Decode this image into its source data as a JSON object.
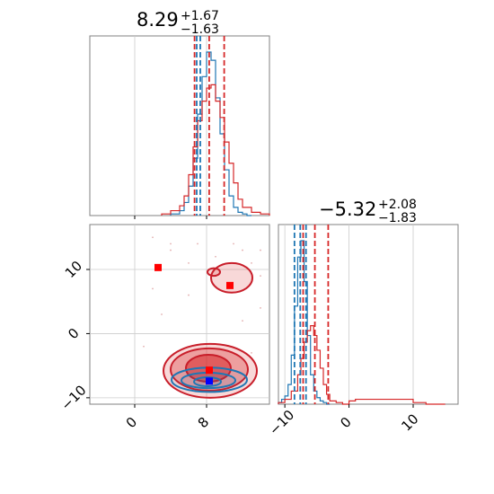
{
  "colors": {
    "blue": "#1f77b4",
    "red": "#d62728",
    "red_dark": "#c81e2a",
    "blue_marker": "#0000ff",
    "red_marker": "#ff0000",
    "grid": "#cccccc",
    "frame": "#808080"
  },
  "titles": {
    "p1": {
      "main": "8.29",
      "sup": "+1.67",
      "sub": "−1.63"
    },
    "p2": {
      "main": "−5.32",
      "sup": "+2.08",
      "sub": "−1.83"
    }
  },
  "chart_data": [
    {
      "type": "histogram",
      "panel": "marginal-param-1",
      "title": "8.29 +1.67 −1.63",
      "xlim": [
        -5,
        15
      ],
      "xticks": [
        0,
        8
      ],
      "series": [
        {
          "color": "blue",
          "bins": [
            4,
            5,
            5.5,
            6,
            6.5,
            7,
            7.5,
            8,
            8.5,
            9,
            9.5,
            10,
            10.5,
            11,
            11.5,
            12,
            12.5,
            13
          ],
          "counts": [
            0.01,
            0.03,
            0.08,
            0.18,
            0.35,
            0.62,
            0.85,
            1.0,
            0.95,
            0.72,
            0.5,
            0.28,
            0.12,
            0.05,
            0.02,
            0.01,
            0
          ]
        },
        {
          "color": "red",
          "bins": [
            3,
            4,
            5,
            5.5,
            6,
            6.5,
            7,
            7.5,
            8,
            8.5,
            9,
            9.5,
            10,
            10.5,
            11,
            11.5,
            12,
            13,
            14,
            15
          ],
          "counts": [
            0.01,
            0.03,
            0.06,
            0.12,
            0.25,
            0.42,
            0.58,
            0.7,
            0.78,
            0.8,
            0.7,
            0.6,
            0.45,
            0.32,
            0.2,
            0.1,
            0.05,
            0.02,
            0.01
          ]
        }
      ],
      "quantiles": [
        {
          "color": "red",
          "values": [
            6.66,
            8.29,
            9.96
          ]
        },
        {
          "color": "blue",
          "values": [
            6.9,
            7.3
          ]
        }
      ]
    },
    {
      "type": "histogram",
      "panel": "marginal-param-2",
      "title": "−5.32 +2.08 −1.83",
      "xlim": [
        -11,
        17
      ],
      "xticks": [
        -10,
        0,
        10
      ],
      "series": [
        {
          "color": "blue",
          "bins": [
            -11,
            -10.5,
            -10,
            -9.5,
            -9,
            -8.5,
            -8,
            -7.5,
            -7,
            -6.5,
            -6,
            -5.5,
            -5,
            -4.5,
            -4,
            -3.5,
            -3
          ],
          "counts": [
            0.01,
            0.03,
            0.05,
            0.12,
            0.3,
            0.6,
            0.9,
            1.0,
            0.75,
            0.42,
            0.18,
            0.08,
            0.04,
            0.02,
            0.01,
            0
          ]
        },
        {
          "color": "red",
          "bins": [
            -11,
            -10,
            -9,
            -8,
            -7.5,
            -7,
            -6.5,
            -6,
            -5.5,
            -5,
            -4.5,
            -4,
            -3.5,
            -3,
            -2,
            -1,
            0,
            1,
            5,
            10,
            12,
            15
          ],
          "counts": [
            0.01,
            0.03,
            0.08,
            0.18,
            0.28,
            0.38,
            0.45,
            0.48,
            0.42,
            0.33,
            0.22,
            0.12,
            0.06,
            0.02,
            0.01,
            0,
            0.02,
            0.03,
            0.03,
            0.01,
            0
          ]
        }
      ],
      "quantiles": [
        {
          "color": "red",
          "values": [
            -7.15,
            -5.32,
            -3.24
          ]
        },
        {
          "color": "blue",
          "values": [
            -8.5,
            -7.6,
            -6.7
          ]
        }
      ]
    },
    {
      "type": "contour",
      "panel": "joint-param-1-vs-param-2",
      "xlim": [
        -5,
        15
      ],
      "ylim": [
        -11,
        17
      ],
      "xticks": [
        0,
        8
      ],
      "yticks": [
        -10,
        0,
        10
      ],
      "series": [
        {
          "color": "red",
          "contours": [
            {
              "cx": 8.4,
              "cy": -5.8,
              "rx": 5.2,
              "ry": 4.2,
              "level": 3
            },
            {
              "cx": 8.3,
              "cy": -5.6,
              "rx": 4.3,
              "ry": 3.3,
              "level": 2
            },
            {
              "cx": 8.2,
              "cy": -5.4,
              "rx": 2.5,
              "ry": 2.1,
              "level": 1
            },
            {
              "cx": 10.8,
              "cy": 8.7,
              "rx": 2.3,
              "ry": 2.3,
              "level": 3
            },
            {
              "cx": 8.8,
              "cy": 9.6,
              "rx": 0.7,
              "ry": 0.6,
              "level": 3
            }
          ],
          "markers": [
            {
              "x": 2.6,
              "y": 10.3
            },
            {
              "x": 10.6,
              "y": 7.5
            },
            {
              "x": 8.3,
              "y": -5.7
            }
          ]
        },
        {
          "color": "blue",
          "contours": [
            {
              "cx": 8.3,
              "cy": -7.2,
              "rx": 4.2,
              "ry": 1.9,
              "level": 3
            },
            {
              "cx": 8.2,
              "cy": -7.3,
              "rx": 3.0,
              "ry": 1.2,
              "level": 2
            },
            {
              "cx": 8.1,
              "cy": -7.5,
              "rx": 1.5,
              "ry": 0.7,
              "level": 1
            }
          ],
          "markers": [
            {
              "x": 8.3,
              "y": -7.4
            }
          ]
        }
      ]
    }
  ]
}
